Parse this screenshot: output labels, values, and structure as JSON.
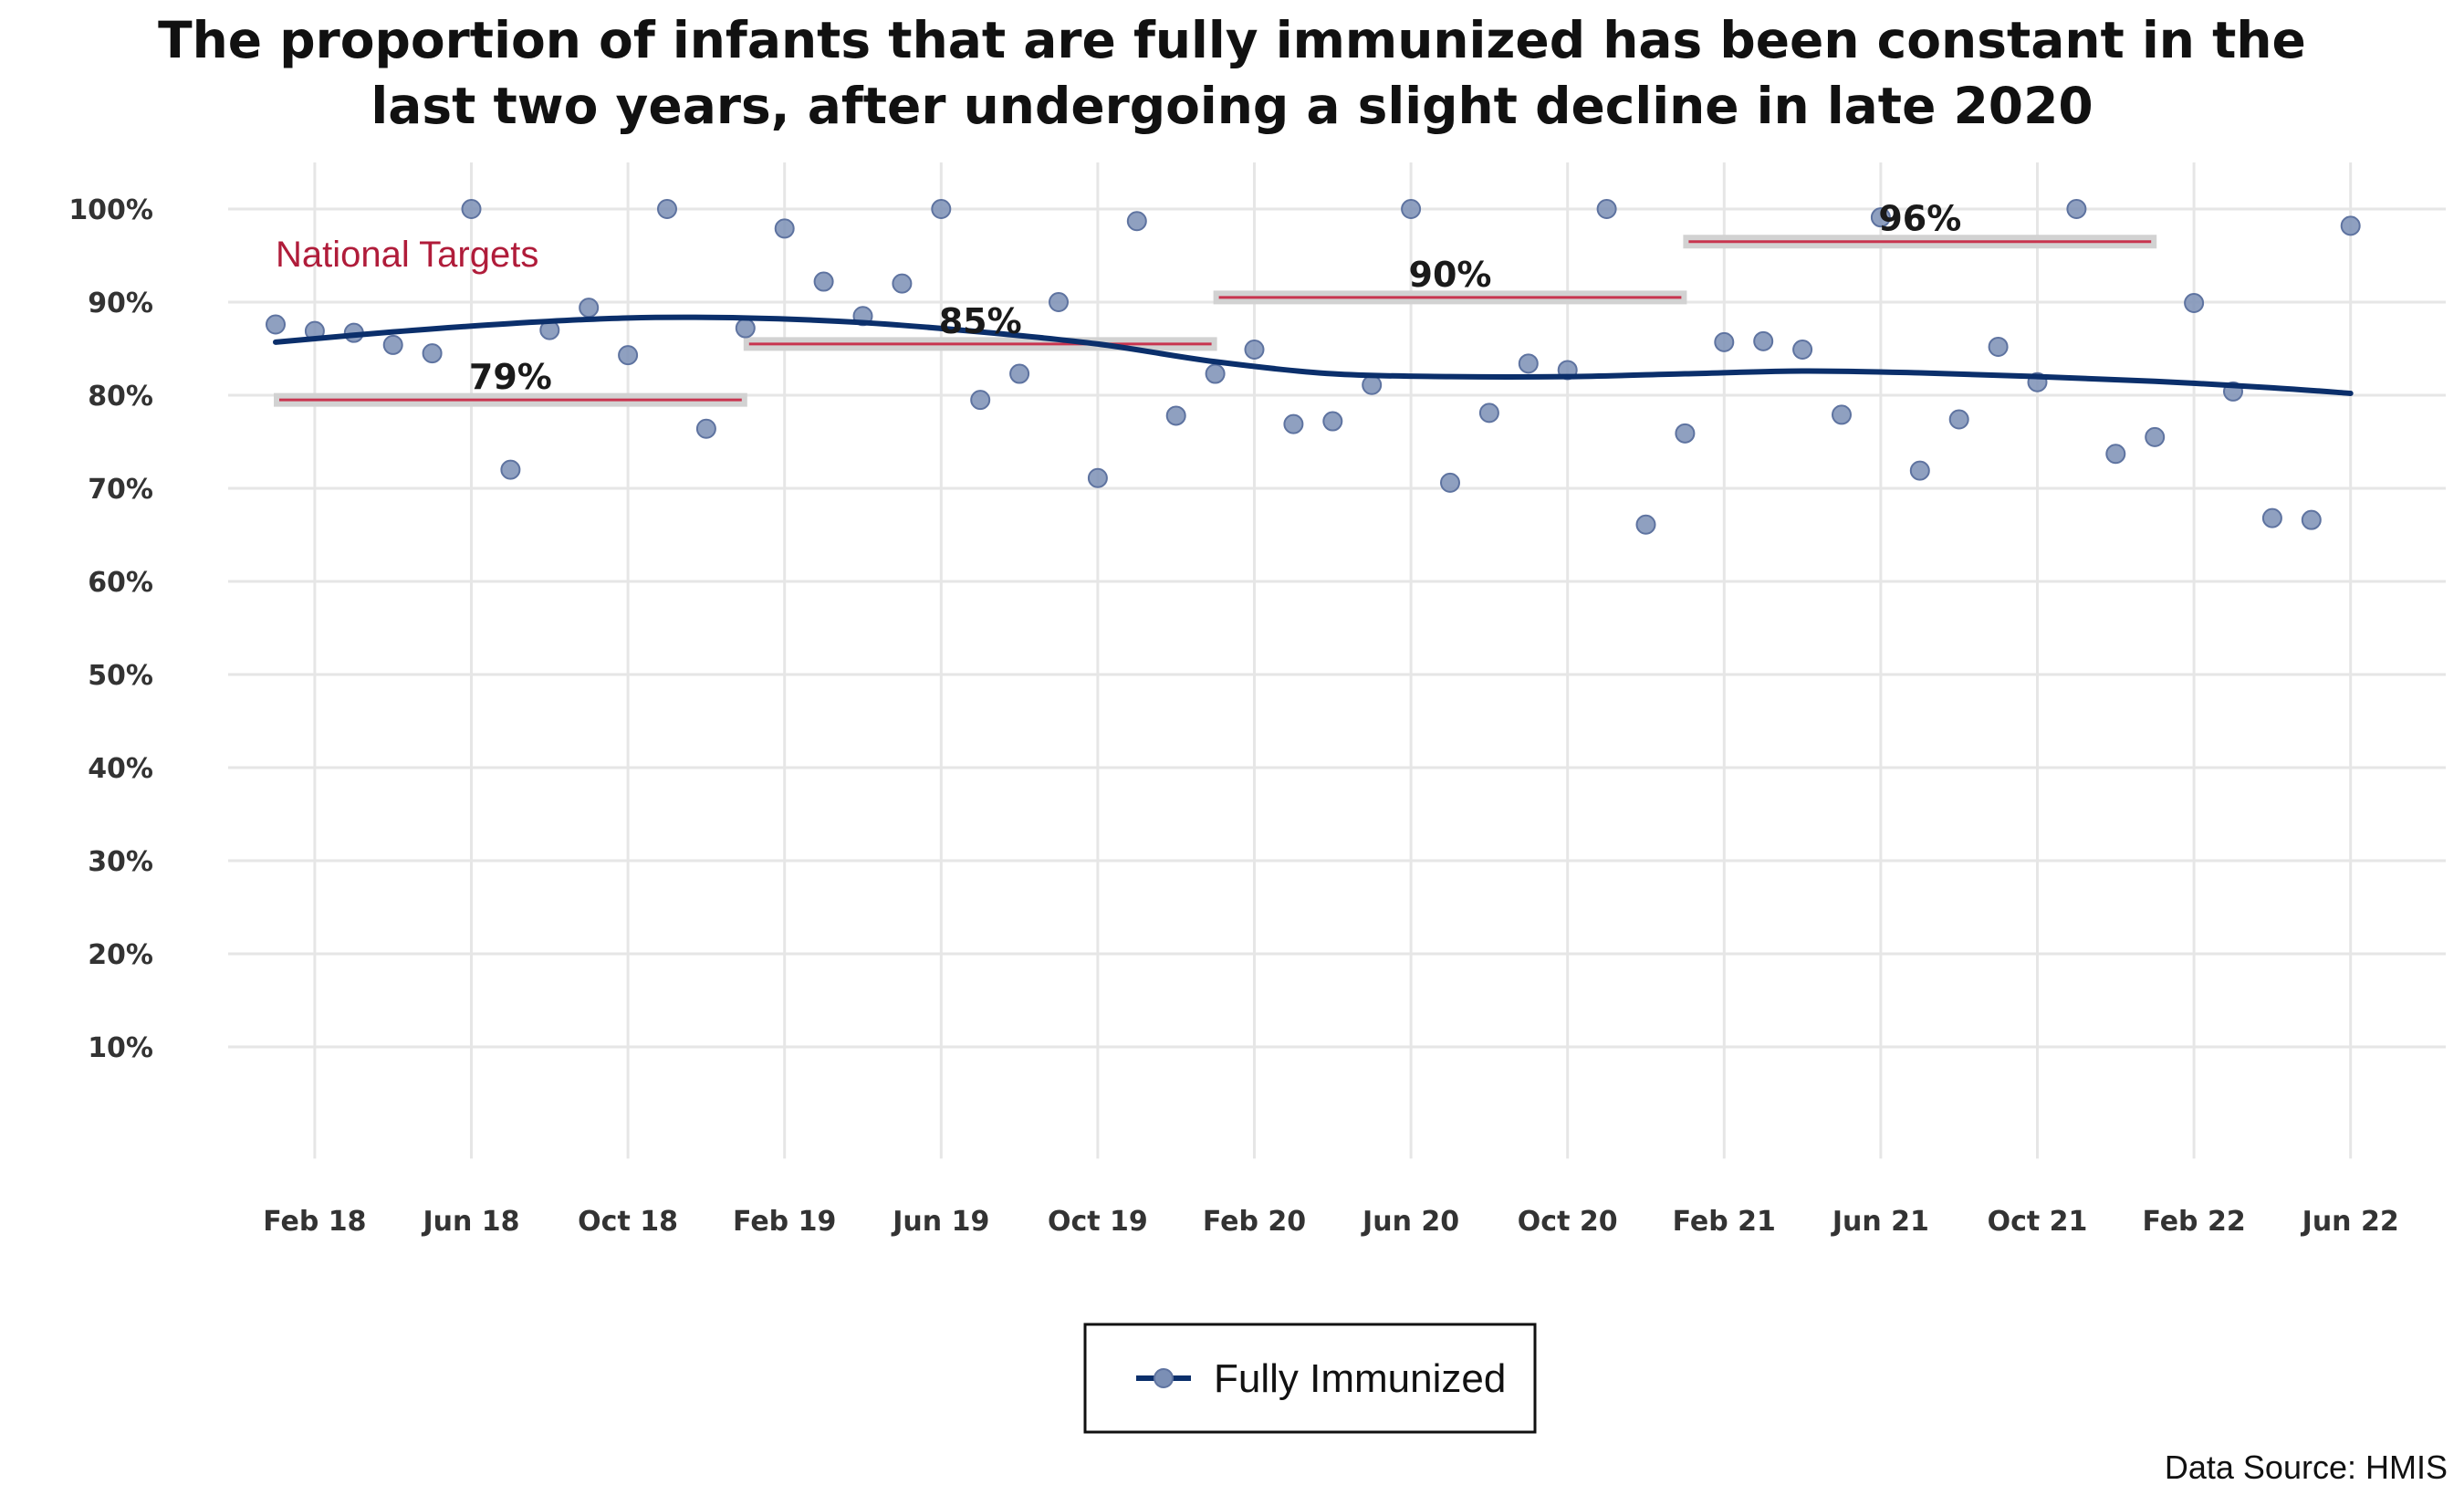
{
  "chart_data": {
    "type": "scatter",
    "title_lines": [
      "The proportion of infants that are fully immunized has been constant in the",
      "last two years, after undergoing a slight decline in late 2020"
    ],
    "xlabel": "",
    "ylabel": "",
    "x_tick_labels": [
      "Feb 18",
      "Jun 18",
      "Oct 18",
      "Feb 19",
      "Jun 19",
      "Oct 19",
      "Feb 20",
      "Jun 20",
      "Oct 20",
      "Feb 21",
      "Jun 21",
      "Oct 21",
      "Feb 22",
      "Jun 22"
    ],
    "x_tick_dates": [
      "2018-02",
      "2018-06",
      "2018-10",
      "2019-02",
      "2019-06",
      "2019-10",
      "2020-02",
      "2020-06",
      "2020-10",
      "2021-02",
      "2021-06",
      "2021-10",
      "2022-02",
      "2022-06"
    ],
    "y_tick_labels": [
      "10%",
      "20%",
      "30%",
      "40%",
      "50%",
      "60%",
      "70%",
      "80%",
      "90%",
      "100%"
    ],
    "y_tick_values": [
      10,
      20,
      30,
      40,
      50,
      60,
      70,
      80,
      90,
      100
    ],
    "xlim": [
      "2017-12",
      "2022-07"
    ],
    "ylim": [
      -2,
      105
    ],
    "grid": true,
    "legend_position": "bottom-center",
    "series": [
      {
        "name": "Fully Immunized",
        "color": "#7B8FB5",
        "trend_color": "#0B2F6B",
        "points": [
          [
            "2018-01",
            87.6
          ],
          [
            "2018-02",
            86.9
          ],
          [
            "2018-03",
            86.7
          ],
          [
            "2018-04",
            85.4
          ],
          [
            "2018-05",
            84.5
          ],
          [
            "2018-06",
            100
          ],
          [
            "2018-07",
            72.0
          ],
          [
            "2018-08",
            87.0
          ],
          [
            "2018-09",
            89.4
          ],
          [
            "2018-10",
            84.3
          ],
          [
            "2018-11",
            100
          ],
          [
            "2018-12",
            76.4
          ],
          [
            "2019-01",
            87.2
          ],
          [
            "2019-02",
            97.9
          ],
          [
            "2019-03",
            92.2
          ],
          [
            "2019-04",
            88.5
          ],
          [
            "2019-05",
            92.0
          ],
          [
            "2019-06",
            100
          ],
          [
            "2019-07",
            79.5
          ],
          [
            "2019-08",
            82.3
          ],
          [
            "2019-09",
            90.0
          ],
          [
            "2019-10",
            71.1
          ],
          [
            "2019-11",
            98.7
          ],
          [
            "2019-12",
            77.8
          ],
          [
            "2020-01",
            82.3
          ],
          [
            "2020-02",
            84.9
          ],
          [
            "2020-03",
            76.9
          ],
          [
            "2020-04",
            77.2
          ],
          [
            "2020-05",
            81.1
          ],
          [
            "2020-06",
            100
          ],
          [
            "2020-07",
            70.6
          ],
          [
            "2020-08",
            78.1
          ],
          [
            "2020-09",
            83.4
          ],
          [
            "2020-10",
            82.7
          ],
          [
            "2020-11",
            100
          ],
          [
            "2020-12",
            66.1
          ],
          [
            "2021-01",
            75.9
          ],
          [
            "2021-02",
            85.7
          ],
          [
            "2021-03",
            85.8
          ],
          [
            "2021-04",
            84.9
          ],
          [
            "2021-05",
            77.9
          ],
          [
            "2021-06",
            99.1
          ],
          [
            "2021-07",
            71.9
          ],
          [
            "2021-08",
            77.4
          ],
          [
            "2021-09",
            85.2
          ],
          [
            "2021-10",
            81.4
          ],
          [
            "2021-11",
            100
          ],
          [
            "2021-12",
            73.7
          ],
          [
            "2022-01",
            75.5
          ],
          [
            "2022-02",
            89.9
          ],
          [
            "2022-03",
            80.4
          ],
          [
            "2022-04",
            66.8
          ],
          [
            "2022-05",
            66.6
          ],
          [
            "2022-06",
            98.2
          ]
        ],
        "trend": [
          [
            "2018-01",
            85.7
          ],
          [
            "2018-04",
            86.8
          ],
          [
            "2018-07",
            87.7
          ],
          [
            "2018-10",
            88.3
          ],
          [
            "2019-01",
            88.3
          ],
          [
            "2019-04",
            87.8
          ],
          [
            "2019-07",
            86.8
          ],
          [
            "2019-10",
            85.5
          ],
          [
            "2020-01",
            83.6
          ],
          [
            "2020-04",
            82.3
          ],
          [
            "2020-07",
            82.0
          ],
          [
            "2020-10",
            82.0
          ],
          [
            "2021-01",
            82.3
          ],
          [
            "2021-04",
            82.6
          ],
          [
            "2021-07",
            82.4
          ],
          [
            "2021-10",
            82.0
          ],
          [
            "2022-01",
            81.5
          ],
          [
            "2022-04",
            80.8
          ],
          [
            "2022-06",
            80.2
          ]
        ]
      }
    ],
    "targets": {
      "caption": "National Targets",
      "caption_color": "#B01C3A",
      "line_color": "#C8344F",
      "band_color": "#D2D2D2",
      "segments": [
        {
          "label": "79%",
          "value": 79.5,
          "start": "2018-01",
          "end": "2019-01"
        },
        {
          "label": "85%",
          "value": 85.5,
          "start": "2019-01",
          "end": "2020-01"
        },
        {
          "label": "90%",
          "value": 90.5,
          "start": "2020-01",
          "end": "2021-01"
        },
        {
          "label": "96%",
          "value": 96.5,
          "start": "2021-01",
          "end": "2022-01"
        }
      ]
    },
    "legend": {
      "label": "Fully Immunized"
    },
    "source": "Data Source: HMIS"
  }
}
